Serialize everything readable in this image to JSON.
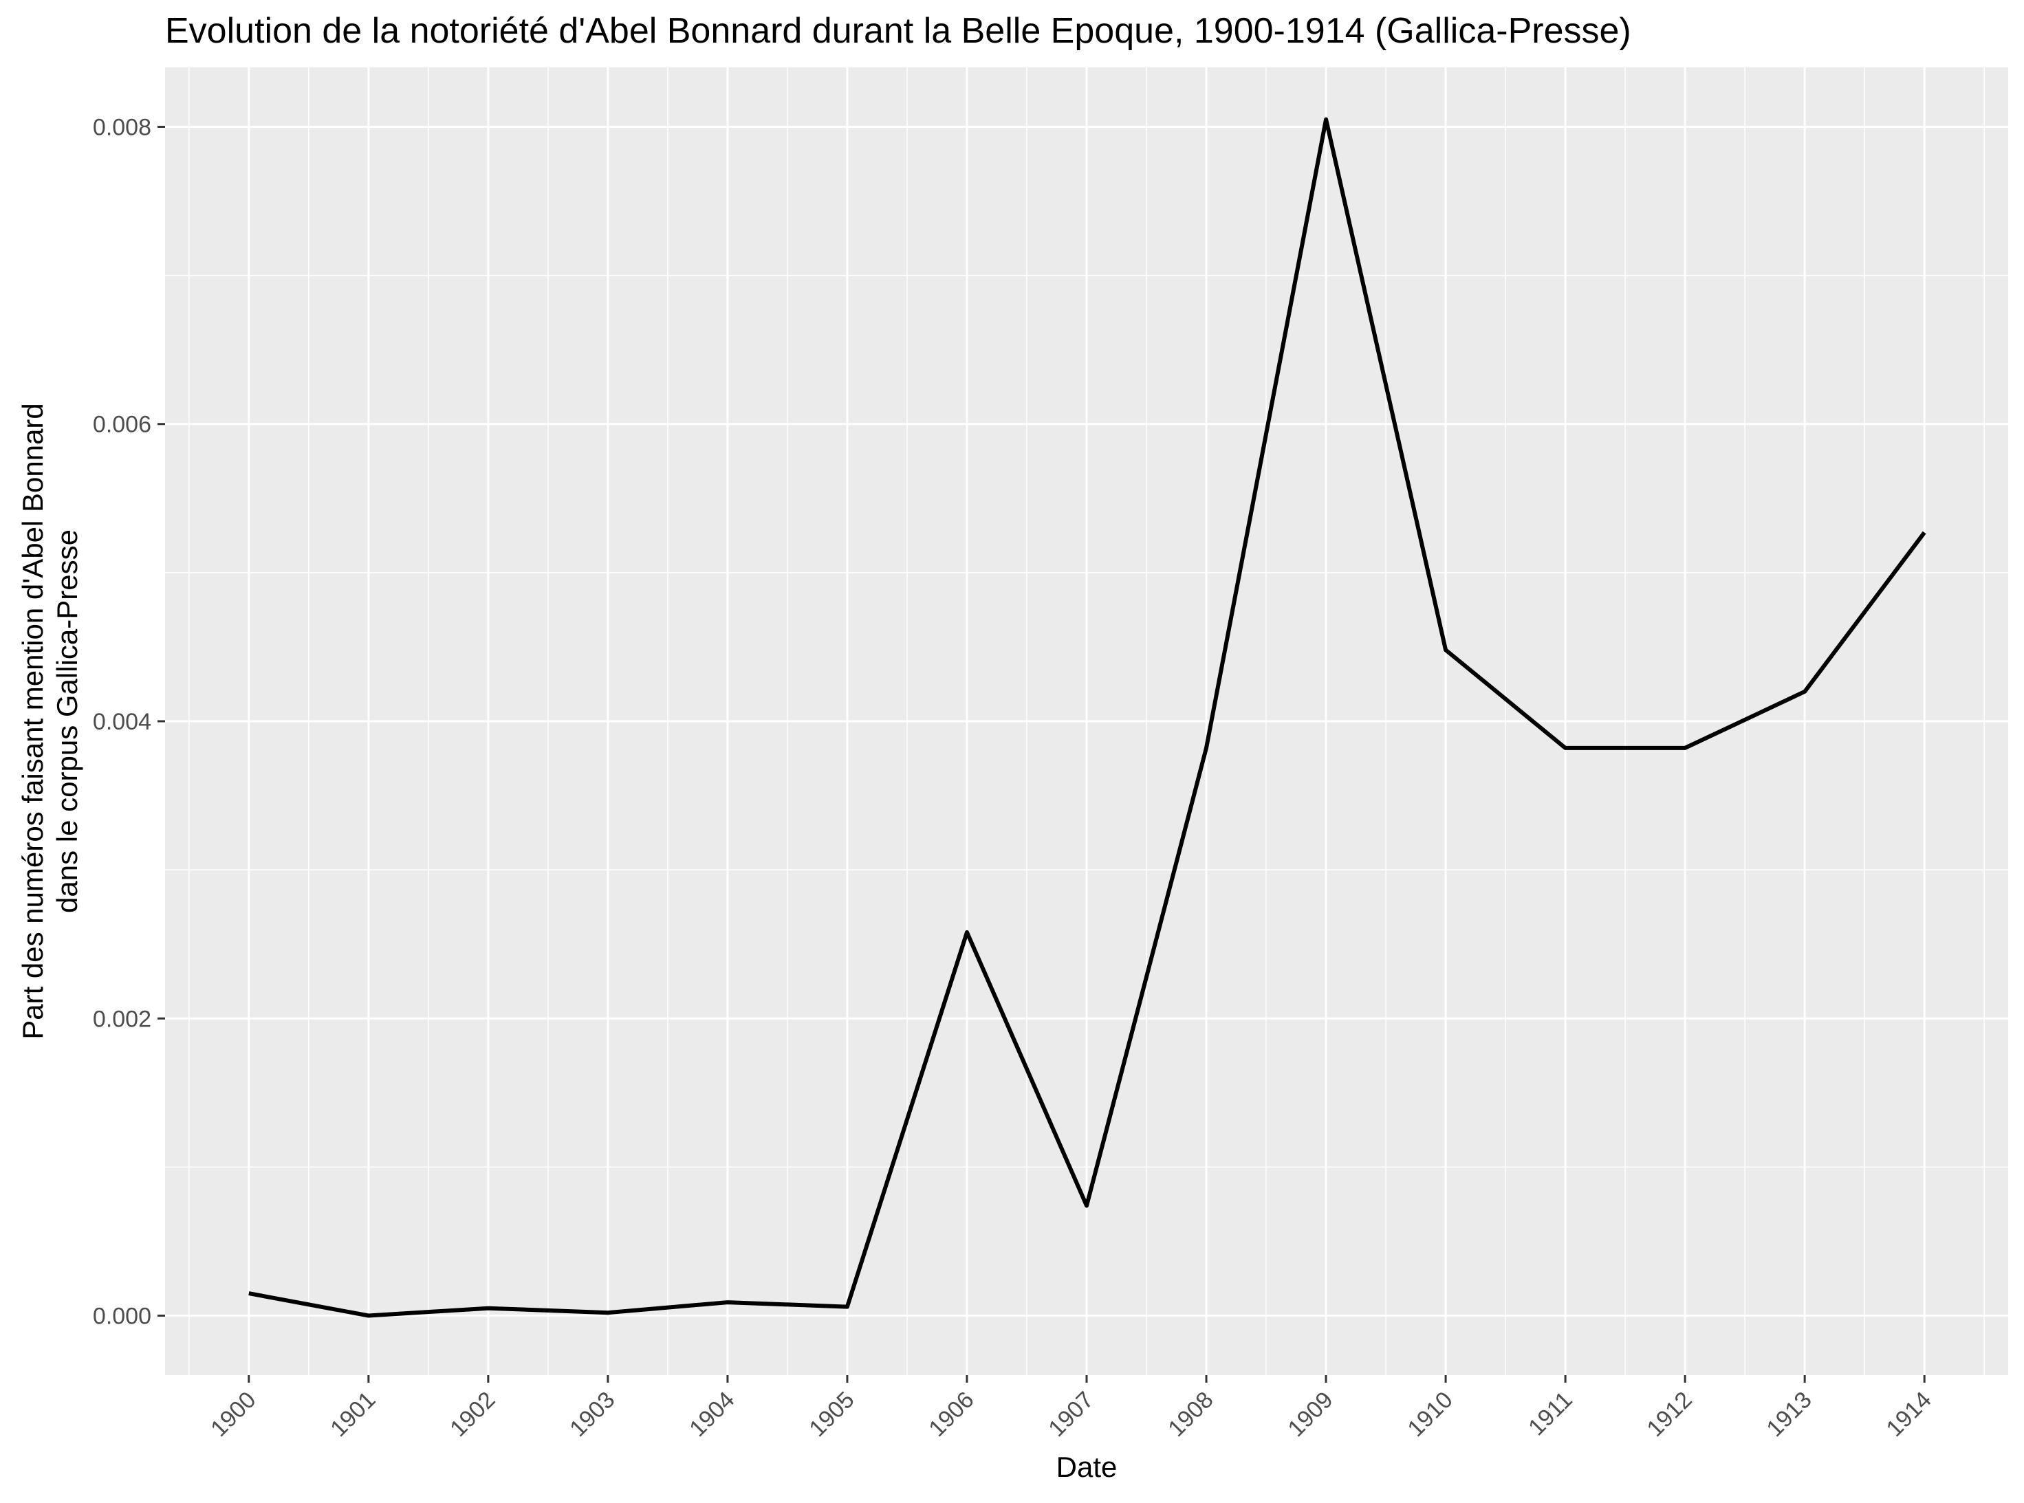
{
  "chart_data": {
    "type": "line",
    "title": "Evolution de la notoriété d'Abel Bonnard durant la Belle Epoque, 1900-1914 (Gallica-Presse)",
    "xlabel": "Date",
    "ylabel_lines": [
      "Part des numéros faisant mention d'Abel Bonnard",
      "dans le corpus Gallica-Presse"
    ],
    "x": [
      1900,
      1901,
      1902,
      1903,
      1904,
      1905,
      1906,
      1907,
      1908,
      1909,
      1910,
      1911,
      1912,
      1913,
      1914
    ],
    "x_tick_labels": [
      "1900",
      "1901",
      "1902",
      "1903",
      "1904",
      "1905",
      "1906",
      "1907",
      "1908",
      "1909",
      "1910",
      "1911",
      "1912",
      "1913",
      "1914"
    ],
    "series": [
      {
        "values": [
          0.00015,
          0.0,
          5e-05,
          2e-05,
          9e-05,
          6e-05,
          0.00258,
          0.00074,
          0.00382,
          0.00805,
          0.00448,
          0.00382,
          0.00382,
          0.0042,
          0.00527
        ],
        "color": "#000000"
      }
    ],
    "y_ticks": [
      0.0,
      0.002,
      0.004,
      0.006,
      0.008
    ],
    "y_tick_labels": [
      "0.000",
      "0.002",
      "0.004",
      "0.006",
      "0.008"
    ],
    "xlim": [
      1899.3,
      1914.7
    ],
    "ylim": [
      -0.0004,
      0.0084
    ],
    "grid": true,
    "legend": "none",
    "panel_background": "#ebebeb",
    "gridline_color": "#ffffff"
  }
}
